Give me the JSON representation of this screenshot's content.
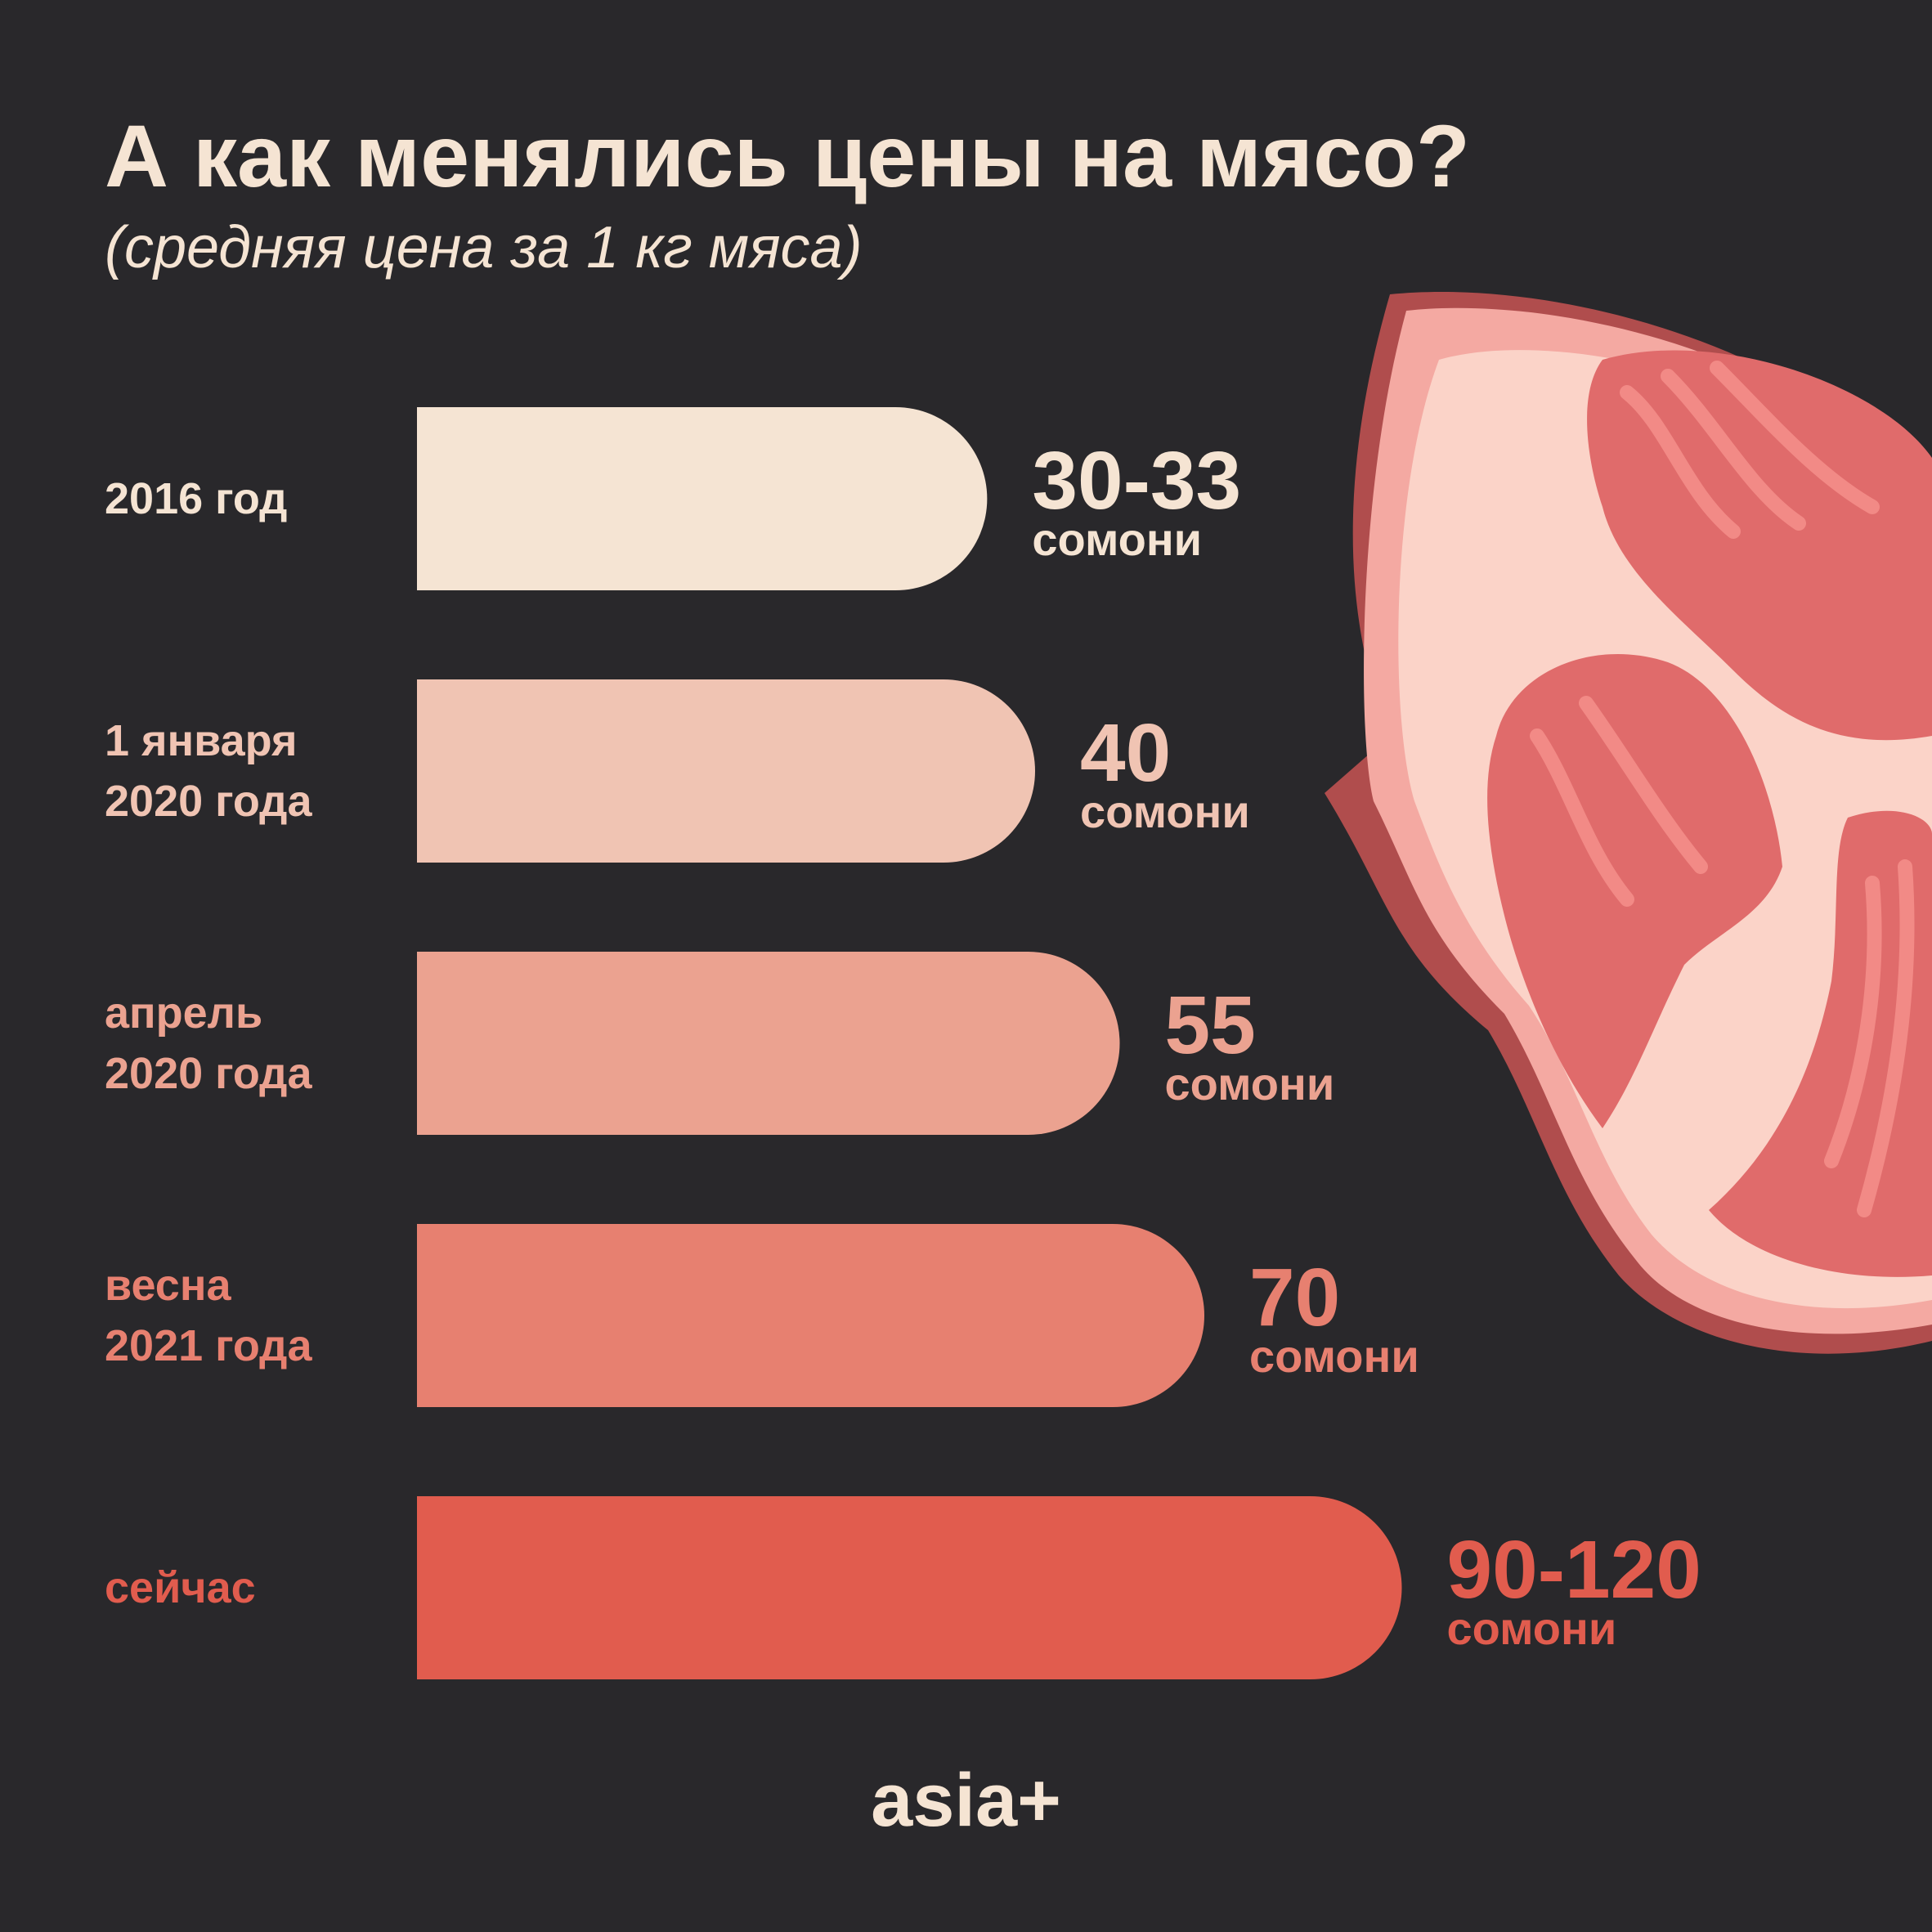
{
  "chart_data": {
    "type": "bar",
    "title": "А как менялись цены на мясо?",
    "subtitle": "(средняя цена за 1 кг мяса)",
    "categories": [
      "2016 год",
      "1 января\n2020 года",
      "апрель\n2020 года",
      "весна\n2021 года",
      "сейчас"
    ],
    "values": [
      [
        30,
        33
      ],
      40,
      55,
      70,
      [
        90,
        120
      ]
    ],
    "value_labels": [
      "30-33",
      "40",
      "55",
      "70",
      "90-120"
    ],
    "unit": "сомони",
    "colors": [
      "#f5e4d3",
      "#f0c4b3",
      "#eba290",
      "#e78070",
      "#e15c4e"
    ],
    "source": "asia+"
  }
}
